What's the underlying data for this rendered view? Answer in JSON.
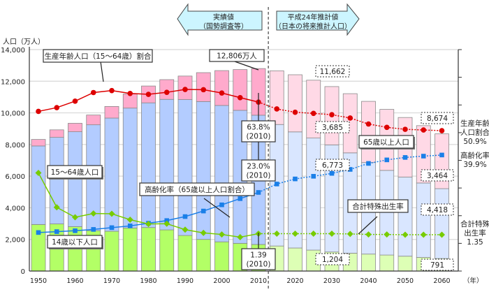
{
  "chart_data": {
    "type": "bar",
    "subtype": "stacked-bar-with-lines",
    "title": "",
    "ylabel": "人口（万人）",
    "xlabel_unit": "（年）",
    "ylim": [
      0,
      14000
    ],
    "yticks": [
      0,
      2000,
      4000,
      6000,
      8000,
      10000,
      12000,
      14000
    ],
    "ytick_labels": [
      "0",
      "2,000",
      "4,000",
      "6,000",
      "8,000",
      "10,000",
      "12,000",
      "14,000"
    ],
    "xtick_labels": [
      "1950",
      "1960",
      "1970",
      "1980",
      "1990",
      "2000",
      "2010",
      "2020",
      "2030",
      "2040",
      "2050",
      "2060"
    ],
    "grid": true,
    "years": [
      1950,
      1955,
      1960,
      1965,
      1970,
      1975,
      1980,
      1985,
      1990,
      1995,
      2000,
      2005,
      2010,
      2015,
      2020,
      2025,
      2030,
      2035,
      2040,
      2045,
      2050,
      2055,
      2060
    ],
    "projection_start_index": 13,
    "series": [
      {
        "name": "14歳以下人口",
        "kind": "bar",
        "color": "#b3ff66",
        "projection_color": "#ddffb5",
        "values": [
          2943,
          2980,
          2807,
          2553,
          2515,
          2722,
          2751,
          2603,
          2249,
          2001,
          1847,
          1752,
          1680,
          1583,
          1457,
          1324,
          1204,
          1129,
          1073,
          1012,
          939,
          861,
          791
        ]
      },
      {
        "name": "15〜64歳人口",
        "kind": "bar",
        "color": "#b3ccff",
        "projection_color": "#d9e6ff",
        "values": [
          4966,
          5473,
          6000,
          6693,
          7157,
          7581,
          7883,
          8251,
          8590,
          8716,
          8622,
          8409,
          8173,
          7682,
          7341,
          7085,
          6773,
          6343,
          5787,
          5353,
          5001,
          4706,
          4418
        ]
      },
      {
        "name": "65歳以上人口",
        "kind": "bar",
        "color": "#ffaacc",
        "projection_color": "#ffd9e6",
        "values": [
          411,
          475,
          535,
          618,
          733,
          887,
          1065,
          1247,
          1489,
          1826,
          2204,
          2576,
          2948,
          3395,
          3612,
          3657,
          3685,
          3741,
          3868,
          3856,
          3768,
          3626,
          3464
        ]
      },
      {
        "name": "生産年齢人口（15〜64歳）割合",
        "kind": "line",
        "marker": "circle",
        "color": "#dd0000",
        "unit": "%",
        "values": [
          59.6,
          61.3,
          64.2,
          68.1,
          69.0,
          67.7,
          67.3,
          68.2,
          69.5,
          69.4,
          67.9,
          65.8,
          63.8,
          60.7,
          59.2,
          58.7,
          58.1,
          56.6,
          53.9,
          52.4,
          51.5,
          51.2,
          50.9
        ]
      },
      {
        "name": "高齢化率（65歳以上人口割合）",
        "kind": "line",
        "marker": "square",
        "color": "#1a7fe8",
        "unit": "%",
        "values": [
          4.9,
          5.3,
          5.7,
          6.3,
          7.1,
          7.9,
          9.1,
          10.3,
          12.1,
          14.6,
          17.4,
          20.2,
          23.0,
          26.8,
          29.1,
          30.3,
          31.6,
          33.4,
          36.1,
          37.7,
          38.8,
          39.4,
          39.9
        ]
      },
      {
        "name": "合計特殊出生率",
        "kind": "line",
        "marker": "diamond",
        "color": "#77cc00",
        "values": [
          3.65,
          2.37,
          2.0,
          2.14,
          2.13,
          1.91,
          1.75,
          1.76,
          1.54,
          1.42,
          1.36,
          1.26,
          1.39,
          1.39,
          1.39,
          1.39,
          1.39,
          1.38,
          1.36,
          1.36,
          1.35,
          1.35,
          1.35
        ]
      }
    ],
    "annotations": {
      "actual_arrow": [
        "実績値",
        "（国勢調査等）"
      ],
      "projection_arrow": [
        "平成24年推計値",
        "（日本の将来推計人口）"
      ],
      "total_2010": "12,806万人",
      "ratio_1564_2010": [
        "63.8%",
        "(2010)"
      ],
      "ratio_65_2010": [
        "23.0%",
        "(2010)"
      ],
      "tfr_2010": [
        "1.39",
        "(2010)"
      ],
      "total_2030": "11,662",
      "pop65_2030": "3,685",
      "pop1564_2030": "6,773",
      "pop014_2030": "1,204",
      "total_2060": "8,674",
      "pop65_2060": "3,464",
      "pop1564_2060": "4,418",
      "pop014_2060": "791",
      "label_1564_ratio": "生産年齢人口（15〜64歳）割合",
      "label_1564_pop": "15〜64歳人口",
      "label_014_pop": "14歳以下人口",
      "label_aging": "高齢化率（65歳以上人口割合）",
      "label_65_pop": "65歳以上人口",
      "label_tfr": "合計特殊出生率",
      "right_1564": [
        "生産年齢",
        "人口割合",
        "50.9%"
      ],
      "right_aging": [
        "高齢化率",
        "39.9%"
      ],
      "right_tfr": [
        "合計特殊",
        "出生率",
        "1.35"
      ]
    }
  }
}
